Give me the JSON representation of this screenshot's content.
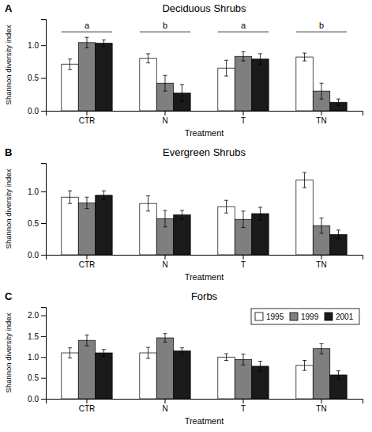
{
  "chart_data": [
    {
      "type": "bar",
      "title": "Deciduous Shrubs",
      "panel_label": "A",
      "xlabel": "Treatment",
      "ylabel": "Shannon diversity index",
      "categories": [
        "CTR",
        "N",
        "T",
        "TN"
      ],
      "series": [
        {
          "name": "1995",
          "color": "white",
          "values": [
            0.71,
            0.8,
            0.65,
            0.82
          ],
          "errors": [
            0.08,
            0.07,
            0.12,
            0.06
          ]
        },
        {
          "name": "1999",
          "color": "#7f7f7f",
          "values": [
            1.04,
            0.42,
            0.83,
            0.3
          ],
          "errors": [
            0.08,
            0.12,
            0.07,
            0.12
          ]
        },
        {
          "name": "2001",
          "color": "#1a1a1a",
          "values": [
            1.03,
            0.27,
            0.79,
            0.13
          ],
          "errors": [
            0.05,
            0.13,
            0.08,
            0.05
          ]
        }
      ],
      "significance_labels": [
        "a",
        "b",
        "a",
        "b"
      ],
      "ylim": [
        0,
        1.4
      ],
      "yticks": [
        {
          "value": 0.0,
          "label": "0.0"
        },
        0.5,
        {
          "value": 1.0,
          "label": "1.0"
        }
      ]
    },
    {
      "type": "bar",
      "title": "Evergreen Shrubs",
      "panel_label": "B",
      "xlabel": "Treatment",
      "ylabel": "Shannon diversity index",
      "categories": [
        "CTR",
        "N",
        "T",
        "TN"
      ],
      "series": [
        {
          "name": "1995",
          "color": "white",
          "values": [
            0.91,
            0.81,
            0.76,
            1.18
          ],
          "errors": [
            0.1,
            0.12,
            0.1,
            0.12
          ]
        },
        {
          "name": "1999",
          "color": "#7f7f7f",
          "values": [
            0.82,
            0.57,
            0.56,
            0.46
          ],
          "errors": [
            0.09,
            0.13,
            0.13,
            0.12
          ]
        },
        {
          "name": "2001",
          "color": "#1a1a1a",
          "values": [
            0.94,
            0.63,
            0.65,
            0.32
          ],
          "errors": [
            0.07,
            0.07,
            0.1,
            0.07
          ]
        }
      ],
      "ylim": [
        0,
        1.45
      ],
      "yticks": [
        {
          "value": 0.0,
          "label": "0.0"
        },
        0.5,
        {
          "value": 1.0,
          "label": "1.0"
        }
      ]
    },
    {
      "type": "bar",
      "title": "Forbs",
      "panel_label": "C",
      "xlabel": "Treatment",
      "ylabel": "Shannon diversity index",
      "categories": [
        "CTR",
        "N",
        "T",
        "TN"
      ],
      "series": [
        {
          "name": "1995",
          "color": "white",
          "values": [
            1.1,
            1.1,
            1.0,
            0.8
          ],
          "errors": [
            0.12,
            0.13,
            0.08,
            0.12
          ]
        },
        {
          "name": "1999",
          "color": "#7f7f7f",
          "values": [
            1.4,
            1.46,
            0.94,
            1.2
          ],
          "errors": [
            0.13,
            0.1,
            0.13,
            0.12
          ]
        },
        {
          "name": "2001",
          "color": "#1a1a1a",
          "values": [
            1.1,
            1.15,
            0.78,
            0.57
          ],
          "errors": [
            0.08,
            0.07,
            0.12,
            0.1
          ]
        }
      ],
      "ylim": [
        0,
        2.2
      ],
      "yticks": [
        {
          "value": 0.0,
          "label": "0.0"
        },
        0.5,
        {
          "value": 1.0,
          "label": "1.0"
        },
        1.5,
        {
          "value": 2.0,
          "label": "2.0"
        }
      ],
      "legend": "upper right"
    }
  ]
}
